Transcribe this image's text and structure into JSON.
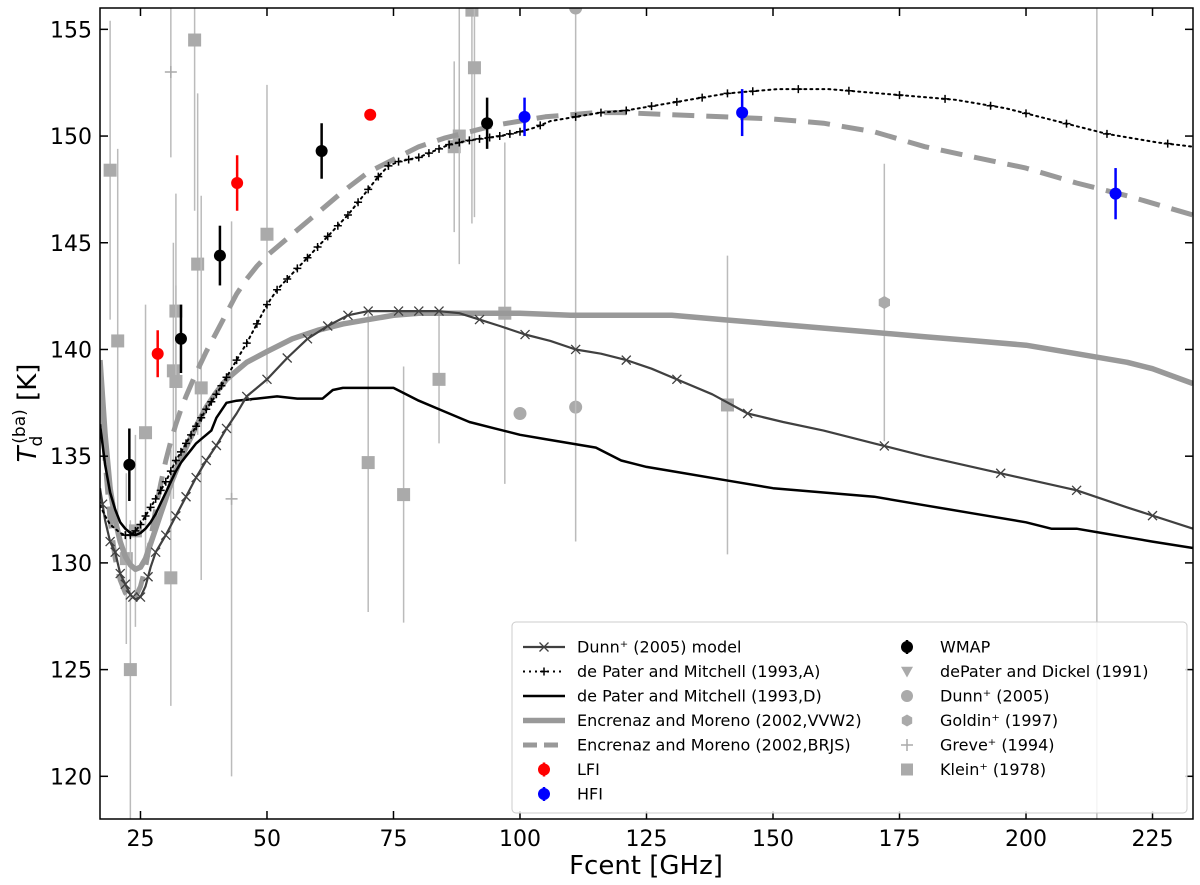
{
  "chart_data": {
    "type": "line",
    "xlabel": "Fcent [GHz]",
    "ylabel_main": "T",
    "ylabel_sub": "d",
    "ylabel_sup": "(ba)",
    "ylabel_unit": " [K]",
    "xlim": [
      17,
      233
    ],
    "ylim": [
      118,
      156
    ],
    "xticks": [
      25,
      50,
      75,
      100,
      125,
      150,
      175,
      200,
      225
    ],
    "yticks": [
      120,
      125,
      130,
      135,
      140,
      145,
      150,
      155
    ],
    "legend_position": "lower-right",
    "models": [
      {
        "name": "Dunn+ (2005) model",
        "legend": "Dunn⁺ (2005) model",
        "style": "cross-line",
        "color": "#404040",
        "x": [
          17,
          18,
          19,
          20,
          21,
          22,
          23,
          24,
          25,
          26,
          27,
          28,
          30,
          32,
          34,
          36,
          38,
          40,
          42,
          44,
          46,
          50,
          54,
          58,
          62,
          66,
          70,
          76,
          80,
          84,
          88,
          92,
          96,
          101,
          106,
          111,
          116,
          121,
          126,
          131,
          138,
          145,
          152,
          160,
          170,
          180,
          195,
          210,
          220,
          233
        ],
        "y": [
          133.5,
          132.0,
          131.0,
          130.5,
          129.5,
          129.0,
          128.5,
          128.3,
          128.4,
          128.9,
          129.8,
          130.5,
          131.3,
          132.2,
          133.1,
          134.0,
          134.8,
          135.5,
          136.3,
          137.0,
          137.8,
          138.6,
          139.6,
          140.5,
          141.1,
          141.6,
          141.8,
          141.8,
          141.8,
          141.8,
          141.7,
          141.4,
          141.1,
          140.7,
          140.4,
          140.0,
          139.8,
          139.5,
          139.1,
          138.6,
          137.9,
          137.0,
          136.6,
          136.2,
          135.6,
          135.0,
          134.2,
          133.4,
          132.6,
          131.6
        ],
        "markers": [
          17.5,
          19,
          20,
          21,
          22,
          23,
          23.5,
          25,
          26.5,
          28,
          30,
          32,
          34,
          36,
          38,
          40,
          42,
          46,
          50,
          54,
          58,
          62,
          66,
          70,
          76,
          80,
          84,
          92,
          101,
          111,
          121,
          131,
          145,
          172,
          195,
          210,
          225
        ]
      },
      {
        "name": "de Pater and Mitchell (1993,A)",
        "legend": "de Pater and Mitchell (1993,A)",
        "style": "dot-plus",
        "color": "#000000",
        "x": [
          17,
          18,
          19,
          20,
          21,
          22,
          23,
          24,
          25,
          26,
          27,
          28,
          29,
          30,
          31,
          32,
          33,
          34,
          35,
          36,
          37,
          38,
          40,
          42,
          44,
          46,
          48,
          50,
          52,
          54,
          56,
          58,
          60,
          62,
          64,
          66,
          68,
          70,
          72,
          74,
          76,
          78,
          80,
          82,
          84,
          86,
          88,
          90,
          93,
          96,
          100,
          103,
          106,
          111,
          116,
          121,
          126,
          131,
          136,
          141,
          146,
          151,
          156,
          161,
          166,
          171,
          176,
          181,
          186,
          191,
          196,
          201,
          206,
          211,
          216,
          221,
          226,
          233
        ],
        "y": [
          132.7,
          132.2,
          131.8,
          131.6,
          131.4,
          131.3,
          131.3,
          131.5,
          131.8,
          132.2,
          132.6,
          133.0,
          133.4,
          133.8,
          134.3,
          134.8,
          135.2,
          135.6,
          136.0,
          136.4,
          136.8,
          137.2,
          137.9,
          138.7,
          139.5,
          140.3,
          141.2,
          142.1,
          142.8,
          143.3,
          143.8,
          144.3,
          144.8,
          145.3,
          145.8,
          146.3,
          146.9,
          147.5,
          148.1,
          148.6,
          148.8,
          148.9,
          149.0,
          149.2,
          149.4,
          149.6,
          149.7,
          149.8,
          149.9,
          150.0,
          150.2,
          150.4,
          150.7,
          150.9,
          151.1,
          151.2,
          151.4,
          151.6,
          151.8,
          152.0,
          152.1,
          152.2,
          152.2,
          152.2,
          152.1,
          152.0,
          151.9,
          151.8,
          151.7,
          151.5,
          151.3,
          151.0,
          150.7,
          150.4,
          150.1,
          149.9,
          149.7,
          149.5
        ],
        "markers": [
          22,
          23,
          24,
          25,
          26,
          27,
          28,
          29,
          30,
          31,
          32,
          33,
          34,
          35,
          36,
          37,
          38,
          39,
          40,
          41,
          42,
          44,
          46,
          48,
          50,
          52,
          54,
          56,
          58,
          60,
          62,
          64,
          66,
          68,
          70,
          72,
          74,
          76,
          78,
          80,
          82,
          84,
          86,
          88,
          90,
          92,
          94,
          96,
          98,
          100,
          104,
          111,
          116,
          121,
          126,
          131,
          136,
          141,
          146,
          155,
          165,
          175,
          184,
          193,
          200,
          208,
          216,
          228
        ]
      },
      {
        "name": "de Pater and Mitchell (1993,D)",
        "legend": "de Pater and Mitchell (1993,D)",
        "style": "line",
        "color": "#000000",
        "x": [
          17,
          18,
          19,
          20,
          21,
          22,
          23,
          24,
          25,
          26,
          27,
          28,
          29,
          30,
          31,
          32,
          33,
          34,
          35,
          36,
          37,
          38,
          39,
          40,
          42,
          44,
          48,
          52,
          56,
          61,
          63,
          65,
          70,
          75,
          80,
          85,
          90,
          95,
          100,
          105,
          110,
          115,
          120,
          125,
          130,
          140,
          150,
          160,
          170,
          180,
          190,
          200,
          205,
          210,
          215,
          220,
          225,
          233
        ],
        "y": [
          136.5,
          134.6,
          133.3,
          132.5,
          131.9,
          131.6,
          131.4,
          131.3,
          131.4,
          131.6,
          131.9,
          132.3,
          132.8,
          133.3,
          133.8,
          134.3,
          134.7,
          135.0,
          135.3,
          135.6,
          135.8,
          136.0,
          136.2,
          136.8,
          137.5,
          137.6,
          137.7,
          137.8,
          137.7,
          137.7,
          138.1,
          138.2,
          138.2,
          138.2,
          137.6,
          137.1,
          136.6,
          136.3,
          136.0,
          135.8,
          135.6,
          135.4,
          134.8,
          134.5,
          134.3,
          133.9,
          133.5,
          133.3,
          133.1,
          132.7,
          132.3,
          131.9,
          131.6,
          131.6,
          131.4,
          131.2,
          131.0,
          130.7
        ]
      },
      {
        "name": "Encrenaz and Moreno (2002,VVW2)",
        "legend": "Encrenaz and Moreno (2002,VVW2)",
        "style": "thick",
        "color": "#999999",
        "x": [
          17,
          18,
          19,
          20,
          21,
          22,
          23,
          24,
          25,
          26,
          27,
          28,
          29,
          30,
          31,
          32,
          33,
          34,
          36,
          38,
          40,
          42,
          44,
          46,
          50,
          55,
          60,
          65,
          70,
          75,
          80,
          85,
          90,
          100,
          110,
          120,
          130,
          140,
          150,
          160,
          170,
          180,
          190,
          200,
          210,
          220,
          225,
          233
        ],
        "y": [
          139.5,
          136.0,
          133.5,
          132.0,
          131.0,
          130.3,
          129.9,
          129.7,
          129.8,
          130.2,
          130.9,
          131.6,
          132.3,
          133.0,
          133.7,
          134.3,
          134.9,
          135.4,
          136.4,
          137.3,
          138.0,
          138.6,
          139.0,
          139.4,
          139.9,
          140.5,
          140.9,
          141.2,
          141.4,
          141.6,
          141.7,
          141.7,
          141.7,
          141.7,
          141.6,
          141.6,
          141.6,
          141.4,
          141.2,
          141.0,
          140.8,
          140.6,
          140.4,
          140.2,
          139.8,
          139.4,
          139.1,
          138.4
        ]
      },
      {
        "name": "Encrenaz and Moreno (2002,BRJS)",
        "legend": "Encrenaz and Moreno (2002,BRJS)",
        "style": "thick-dashed",
        "color": "#999999",
        "x": [
          17,
          18,
          19,
          20,
          21,
          22,
          23,
          24,
          25,
          26,
          27,
          28,
          29,
          30,
          31,
          32,
          33,
          34,
          36,
          38,
          40,
          42,
          44,
          46,
          48,
          50,
          55,
          60,
          65,
          70,
          75,
          80,
          85,
          90,
          95,
          100,
          105,
          110,
          115,
          120,
          130,
          140,
          150,
          160,
          170,
          180,
          190,
          200,
          210,
          220,
          233
        ],
        "y": [
          139.0,
          134.8,
          132.0,
          130.2,
          129.2,
          128.6,
          128.3,
          128.4,
          128.9,
          129.8,
          131.1,
          132.5,
          133.7,
          134.8,
          135.7,
          136.5,
          137.2,
          137.8,
          138.9,
          139.9,
          140.8,
          141.7,
          142.6,
          143.3,
          143.9,
          144.4,
          145.4,
          146.4,
          147.4,
          148.3,
          148.9,
          149.5,
          149.9,
          150.2,
          150.5,
          150.7,
          150.9,
          151.0,
          151.1,
          151.1,
          151.0,
          150.9,
          150.8,
          150.6,
          150.2,
          149.5,
          149.0,
          148.5,
          147.8,
          147.2,
          146.3
        ]
      }
    ],
    "datasets": [
      {
        "name": "LFI",
        "legend": "LFI",
        "color": "#ff0000",
        "marker": "circle",
        "points": [
          [
            28.4,
            139.8,
            1.1
          ],
          [
            44.1,
            147.8,
            1.3
          ],
          [
            70.4,
            151.0,
            0.1
          ]
        ]
      },
      {
        "name": "HFI",
        "legend": "HFI",
        "color": "#0000ff",
        "marker": "circle",
        "points": [
          [
            100.9,
            150.9,
            0.9
          ],
          [
            143.9,
            151.1,
            1.1
          ],
          [
            217.7,
            147.3,
            1.2
          ]
        ]
      },
      {
        "name": "WMAP",
        "legend": "WMAP",
        "color": "#000000",
        "marker": "circle",
        "points": [
          [
            22.8,
            134.6,
            1.7
          ],
          [
            33.0,
            140.5,
            1.6
          ],
          [
            40.7,
            144.4,
            1.4
          ],
          [
            60.8,
            149.3,
            1.3
          ],
          [
            93.5,
            150.6,
            1.2
          ]
        ]
      },
      {
        "name": "dePater and Dickel (1991)",
        "legend": "dePater and Dickel (1991)",
        "color": "#aaaaaa",
        "marker": "triangle-down",
        "points": []
      },
      {
        "name": "Dunn+ (2005)",
        "legend": "Dunn⁺ (2005)",
        "color": "#aaaaaa",
        "marker": "circle",
        "points": [
          [
            100,
            137.0,
            0.0
          ],
          [
            111,
            137.3,
            0.0
          ],
          [
            111,
            156.0,
            25.0
          ]
        ]
      },
      {
        "name": "Goldin+ (1997)",
        "legend": "Goldin⁺ (1997)",
        "color": "#aaaaaa",
        "marker": "hexagon",
        "points": [
          [
            172,
            142.2,
            6.5
          ]
        ]
      },
      {
        "name": "Greve+ (1994)",
        "legend": "Greve⁺ (1994)",
        "color": "#aaaaaa",
        "marker": "plus",
        "points": [
          [
            31,
            153.0,
            4.0
          ],
          [
            43,
            133.0,
            13.0
          ]
        ]
      },
      {
        "name": "Klein+ (1978)",
        "legend": "Klein⁺ (1978)",
        "color": "#aaaaaa",
        "marker": "square",
        "points": [
          [
            19.0,
            148.4,
            7.0
          ],
          [
            20.5,
            140.4,
            9.0
          ],
          [
            22.2,
            130.2,
            4.0
          ],
          [
            23.0,
            125.0,
            7.0
          ],
          [
            24.0,
            131.5,
            4.5
          ],
          [
            26.0,
            136.1,
            6.0
          ],
          [
            31.0,
            129.3,
            6.0
          ],
          [
            31.5,
            139.0,
            6.0
          ],
          [
            32.0,
            141.8,
            5.5
          ],
          [
            32.0,
            138.5,
            4.5
          ],
          [
            35.7,
            154.5,
            8.0
          ],
          [
            36.3,
            144.0,
            8.0
          ],
          [
            37.0,
            138.2,
            9.0
          ],
          [
            50.0,
            145.4,
            7.0
          ],
          [
            70.0,
            134.7,
            7.0
          ],
          [
            77.0,
            133.2,
            6.0
          ],
          [
            84.0,
            138.6,
            3.0
          ],
          [
            87.0,
            149.5,
            4.0
          ],
          [
            88.0,
            150.0,
            6.0
          ],
          [
            90.5,
            155.9,
            10.0
          ],
          [
            91.0,
            153.2,
            7.0
          ],
          [
            97.0,
            141.7,
            8.0
          ],
          [
            141.0,
            137.4,
            7.0
          ]
        ]
      }
    ],
    "extra_error_bars": [
      [
        214,
        118,
        156
      ]
    ]
  }
}
